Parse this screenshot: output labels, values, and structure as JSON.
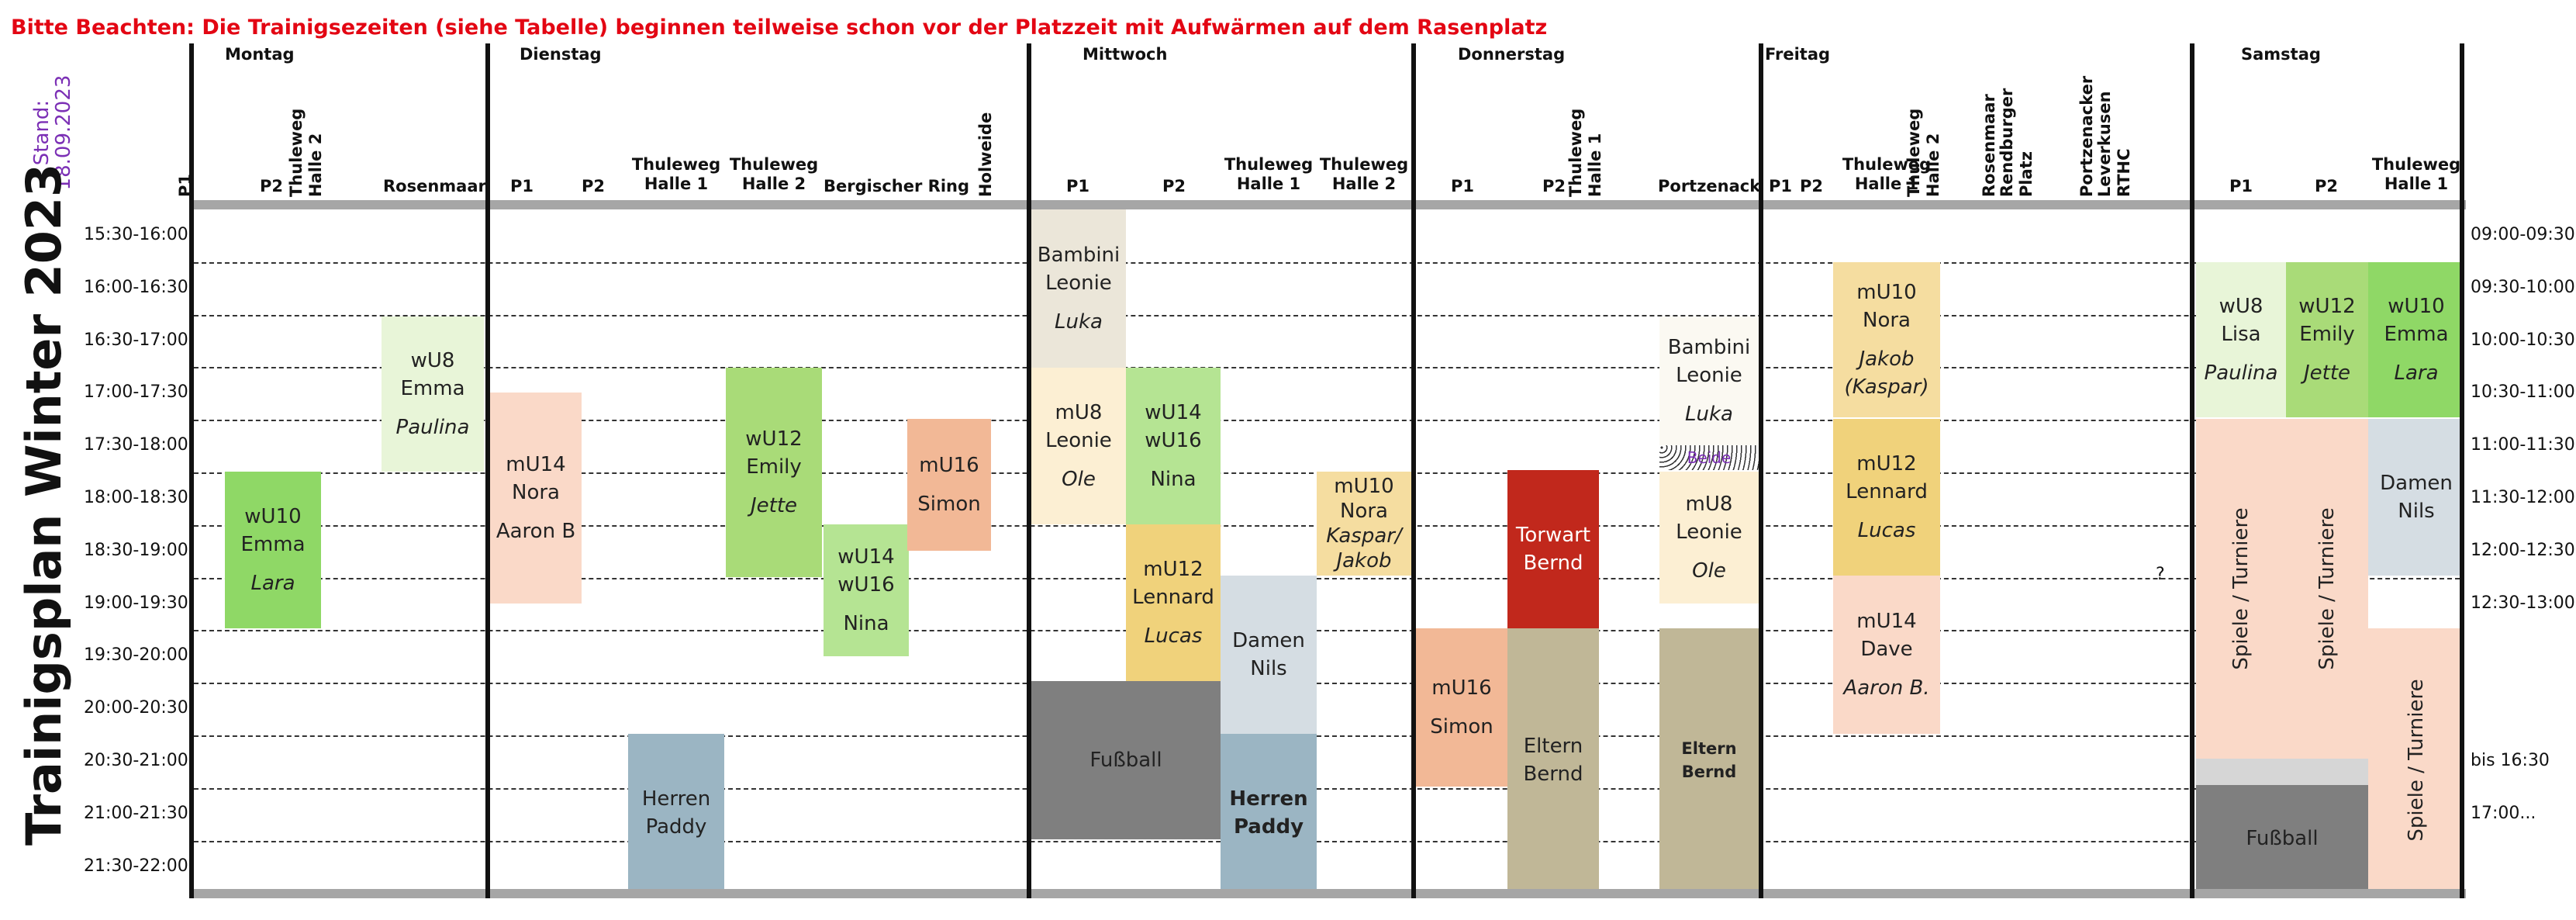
{
  "notice": "Bitte Beachten: Die Trainigsezeiten (siehe Tabelle) beginnen teilweise schon vor der Platzzeit mit Aufwärmen auf dem Rasenplatz",
  "stand": {
    "label": "Stand:",
    "date": "18.09.2023"
  },
  "title": "Trainigsplan Winter 2023",
  "days": {
    "montag": "Montag",
    "dienstag": "Dienstag",
    "mittwoch": "Mittwoch",
    "donnerstag": "Donnerstag",
    "freitag": "Freitag",
    "samstag": "Samstag"
  },
  "columns": {
    "p1": "P1",
    "p2": "P2",
    "thuleweg_halle2": "Thuleweg Halle 2",
    "rosenmaar": "Rosenmaar",
    "thuleweg": "Thuleweg",
    "halle1": "Halle 1",
    "halle2": "Halle 2",
    "bergischer_ring": "Bergischer Ring",
    "holweide": "Holweide",
    "thuleweg_halle1": "Thuleweg Halle 1",
    "portzenack": "Portzenack",
    "rosenmaar_v": "Rosenmaar",
    "rendburger": "Rendburger Platz",
    "portzenacker": "Portzenacker",
    "leverkusen": "Leverkusen RTHC"
  },
  "times_left": [
    "15:30-16:00",
    "16:00-16:30",
    "16:30-17:00",
    "17:00-17:30",
    "17:30-18:00",
    "18:00-18:30",
    "18:30-19:00",
    "19:00-19:30",
    "19:30-20:00",
    "20:00-20:30",
    "20:30-21:00",
    "21:00-21:30",
    "21:30-22:00"
  ],
  "times_right": [
    "09:00-09:30",
    "09:30-10:00",
    "10:00-10:30",
    "10:30-11:00",
    "11:00-11:30",
    "11:30-12:00",
    "12:00-12:30",
    "12:30-13:00",
    "bis 16:30",
    "17:00..."
  ],
  "blocks": {
    "mo_wu10": {
      "team": "wU10",
      "coach": "Emma",
      "assistant": "Lara"
    },
    "mo_wu8": {
      "team": "wU8",
      "coach": "Emma",
      "assistant": "Paulina"
    },
    "di_mu14": {
      "team": "mU14",
      "coach": "Nora",
      "assistant": "Aaron B"
    },
    "di_herren": {
      "team": "Herren",
      "coach": "Paddy"
    },
    "di_wu12": {
      "team": "wU12",
      "coach": "Emily",
      "assistant": "Jette"
    },
    "di_wu14": {
      "team": "wU14",
      "team2": "wU16",
      "coach": "Nina"
    },
    "di_mu16": {
      "team": "mU16",
      "coach": "Simon"
    },
    "mi_bambini": {
      "team": "Bambini",
      "coach": "Leonie",
      "assistant": "Luka"
    },
    "mi_mu8": {
      "team": "mU8",
      "coach": "Leonie",
      "assistant": "Ole"
    },
    "mi_wu14": {
      "team": "wU14",
      "team2": "wU16",
      "coach": "Nina"
    },
    "mi_mu12": {
      "team": "mU12",
      "coach": "Lennard",
      "assistant": "Lucas"
    },
    "mi_fussball": {
      "label": "Fußball"
    },
    "mi_damen": {
      "team": "Damen",
      "coach": "Nils"
    },
    "mi_herren": {
      "team": "Herren",
      "coach": "Paddy"
    },
    "mi_mu10": {
      "team": "mU10",
      "coach": "Nora",
      "assistant": "Kaspar/ Jakob"
    },
    "do_mu16": {
      "team": "mU16",
      "coach": "Simon"
    },
    "do_torwart": {
      "team": "Torwart",
      "coach": "Bernd"
    },
    "do_eltern": {
      "team": "Eltern",
      "coach": "Bernd"
    },
    "do_bambini": {
      "team": "Bambini",
      "coach": "Leonie",
      "assistant": "Luka"
    },
    "do_beide": {
      "label": "Beide"
    },
    "do_mu8": {
      "team": "mU8",
      "coach": "Leonie",
      "assistant": "Ole"
    },
    "do_eltern2": {
      "team": "Eltern",
      "coach": "Bernd"
    },
    "fr_mu10": {
      "team": "mU10",
      "coach": "Nora",
      "assistant": "Jakob",
      "assistant2": "(Kaspar)"
    },
    "fr_mu12": {
      "team": "mU12",
      "coach": "Lennard",
      "assistant": "Lucas"
    },
    "fr_mu14": {
      "team": "mU14",
      "coach": "Dave",
      "assistant": "Aaron B."
    },
    "fr_q": {
      "label": "?"
    },
    "sa_wu8": {
      "team": "wU8",
      "coach": "Lisa",
      "assistant": "Paulina"
    },
    "sa_wu12": {
      "team": "wU12",
      "coach": "Emily",
      "assistant": "Jette"
    },
    "sa_wu10": {
      "team": "wU10",
      "coach": "Emma",
      "assistant": "Lara"
    },
    "sa_damen": {
      "team": "Damen",
      "coach": "Nils"
    },
    "sa_spiele1": {
      "label": "Spiele / Turniere"
    },
    "sa_spiele2": {
      "label": "Spiele / Turniere"
    },
    "sa_spiele3": {
      "label": "Spiele / Turniere"
    },
    "sa_fussball": {
      "label": "Fußball"
    }
  }
}
